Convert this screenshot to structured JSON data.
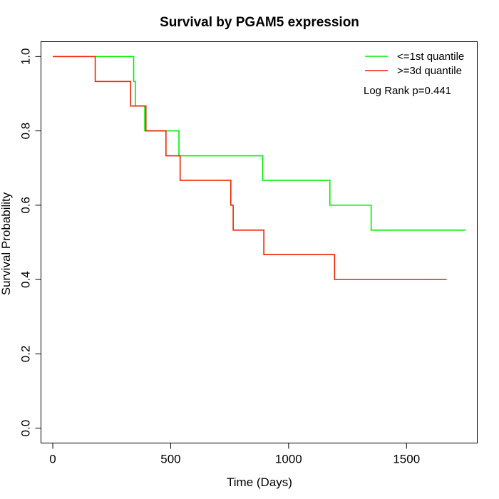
{
  "chart_data": {
    "type": "line",
    "title": "Survival by PGAM5 expression",
    "xlabel": "Time (Days)",
    "ylabel": "Survival Probability",
    "xlim": [
      -50,
      1800
    ],
    "ylim": [
      -0.04,
      1.04
    ],
    "x_ticks": [
      0,
      500,
      1000,
      1500
    ],
    "y_ticks": [
      0.0,
      0.2,
      0.4,
      0.6,
      0.8,
      1.0
    ],
    "x_tick_labels": [
      "0",
      "500",
      "1000",
      "1500"
    ],
    "y_tick_labels": [
      "0.0",
      "0.2",
      "0.4",
      "0.6",
      "0.8",
      "1.0"
    ],
    "grid": false,
    "legend_position": "top-right",
    "annotation": "Log Rank p=0.441",
    "series": [
      {
        "name": "<=1st quantile",
        "color": "#00ee00",
        "steps": [
          [
            0,
            1.0
          ],
          [
            343,
            0.933
          ],
          [
            350,
            0.867
          ],
          [
            390,
            0.8
          ],
          [
            535,
            0.733
          ],
          [
            890,
            0.667
          ],
          [
            1175,
            0.6
          ],
          [
            1350,
            0.533
          ]
        ],
        "end": 1750
      },
      {
        "name": ">=3d quantile",
        "color": "#ee2200",
        "steps": [
          [
            0,
            1.0
          ],
          [
            180,
            0.933
          ],
          [
            330,
            0.867
          ],
          [
            395,
            0.8
          ],
          [
            480,
            0.733
          ],
          [
            540,
            0.667
          ],
          [
            755,
            0.6
          ],
          [
            765,
            0.533
          ],
          [
            895,
            0.467
          ],
          [
            1195,
            0.4
          ]
        ],
        "end": 1670
      }
    ]
  }
}
